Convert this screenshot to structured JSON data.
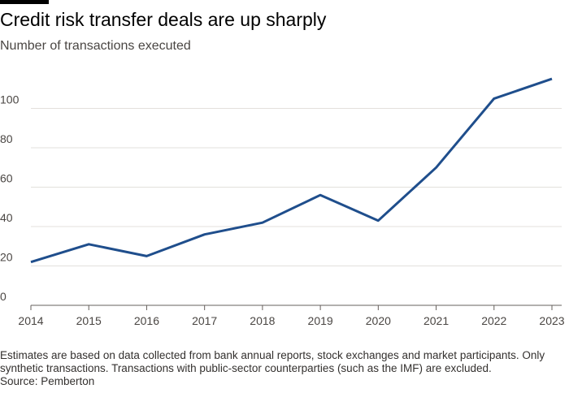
{
  "header": {
    "title": "Credit risk transfer deals are up sharply",
    "subtitle": "Number of transactions executed"
  },
  "footnote": {
    "line1": "Estimates are based on data collected from bank annual reports, stock exchanges and market participants. Only",
    "line2": "synthetic transactions. Transactions with public-sector counterparties (such as the IMF) are excluded.",
    "source": "Source: Pemberton"
  },
  "colors": {
    "line": "#1f4e8c",
    "grid": "#e3e0dc",
    "axis": "#66605c",
    "accent": "#000000"
  },
  "chart_data": {
    "type": "line",
    "title": "Credit risk transfer deals are up sharply",
    "subtitle": "Number of transactions executed",
    "xlabel": "",
    "ylabel": "",
    "grid": true,
    "x": [
      "2014",
      "2015",
      "2016",
      "2017",
      "2018",
      "2019",
      "2020",
      "2021",
      "2022",
      "2023"
    ],
    "series": [
      {
        "name": "Transactions",
        "values": [
          22,
          31,
          25,
          36,
          42,
          56,
          43,
          70,
          105,
          115
        ]
      }
    ],
    "ylim": [
      0,
      120
    ],
    "yticks": [
      0,
      20,
      40,
      60,
      80,
      100
    ]
  }
}
